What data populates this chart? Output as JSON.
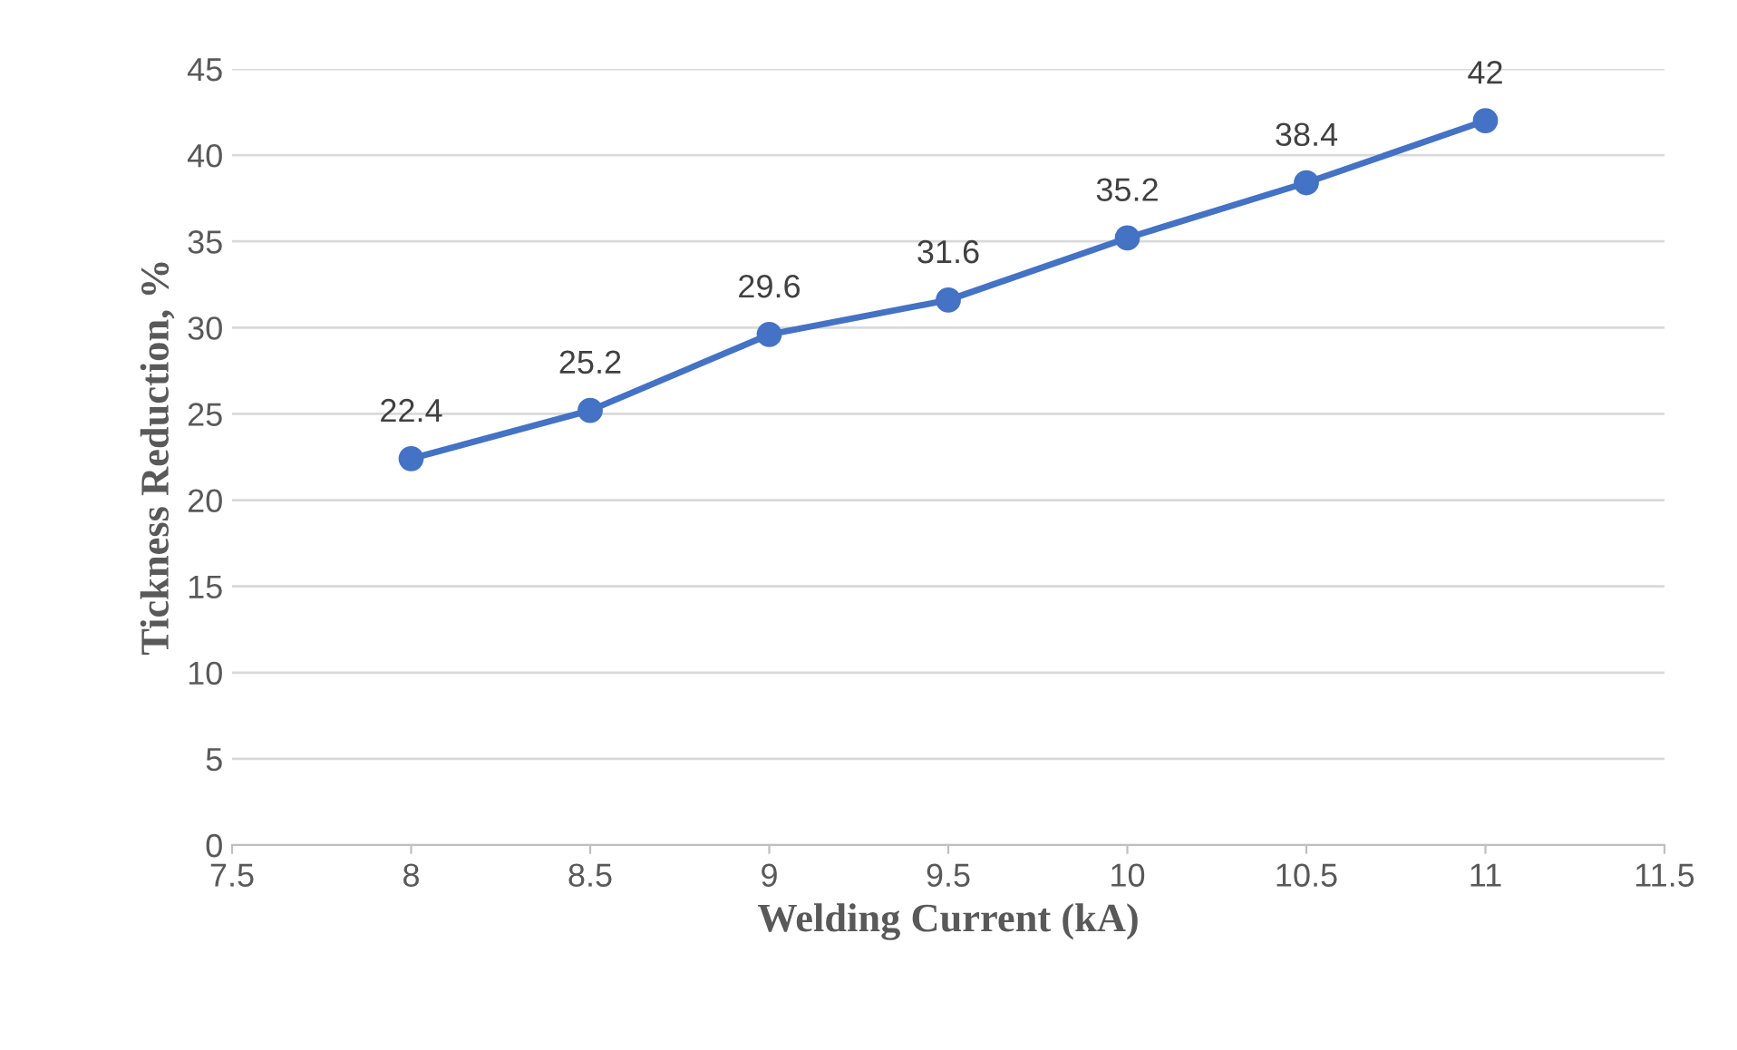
{
  "chart_data": {
    "type": "line",
    "xlabel": "Welding Current (kA)",
    "ylabel": "Tickness Reduction, %",
    "x": [
      8,
      8.5,
      9,
      9.5,
      10,
      10.5,
      11
    ],
    "series": [
      {
        "color": "#4472c4",
        "values": [
          22.4,
          25.2,
          29.6,
          31.6,
          35.2,
          38.4,
          42
        ]
      }
    ],
    "xlim": [
      7.5,
      11.5
    ],
    "xticks": [
      7.5,
      8,
      8.5,
      9,
      9.5,
      10,
      10.5,
      11,
      11.5
    ],
    "ylim": [
      0,
      45
    ],
    "yticks": [
      0,
      5,
      10,
      15,
      20,
      25,
      30,
      35,
      40,
      45
    ],
    "grid": "y",
    "marker": "circle",
    "line_style": "solid",
    "data_labels": true
  }
}
